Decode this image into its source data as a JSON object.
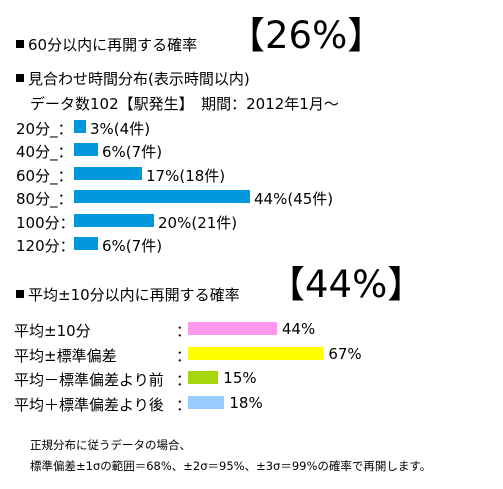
{
  "section1": {
    "title": "60分以内に再開する確率",
    "big_value": "【26%】"
  },
  "section2": {
    "title": "見合わせ時間分布(表示時間以内)",
    "subtitle": "データ数102【駅発生】　期間：2012年1月～"
  },
  "section3": {
    "title": "平均±10分以内に再開する確率",
    "big_value": "【44%】"
  },
  "chart_data": [
    {
      "type": "bar",
      "orientation": "horizontal",
      "title": "見合わせ時間分布(表示時間以内)",
      "categories": [
        "20分_：",
        "40分_：",
        "60分_：",
        "80分_：",
        "100分：",
        "120分："
      ],
      "values": [
        3,
        6,
        17,
        44,
        20,
        6
      ],
      "counts": [
        4,
        7,
        18,
        45,
        21,
        7
      ],
      "labels": [
        "3%(4件)",
        "6%(7件)",
        "17%(18件)",
        "44%(45件)",
        "20%(21件)",
        "6%(7件)"
      ],
      "unit": "%",
      "color": "#0097dc"
    },
    {
      "type": "bar",
      "orientation": "horizontal",
      "title": "平均±10分以内に再開する確率",
      "categories": [
        "平均±10分",
        "平均±標準偏差",
        "平均－標準偏差より前",
        "平均＋標準偏差より後"
      ],
      "separator": "：",
      "values": [
        44,
        67,
        15,
        18
      ],
      "labels": [
        "44%",
        "67%",
        "15%",
        "18%"
      ],
      "unit": "%",
      "colors": [
        "#ff99ee",
        "#ffff00",
        "#a6d610",
        "#99ccff"
      ]
    }
  ],
  "footnote": {
    "line1": "正規分布に従うデータの場合、",
    "line2": "標準偏差±1σの範囲＝68%、±2σ＝95%、±3σ＝99%の確率で再開します。"
  }
}
